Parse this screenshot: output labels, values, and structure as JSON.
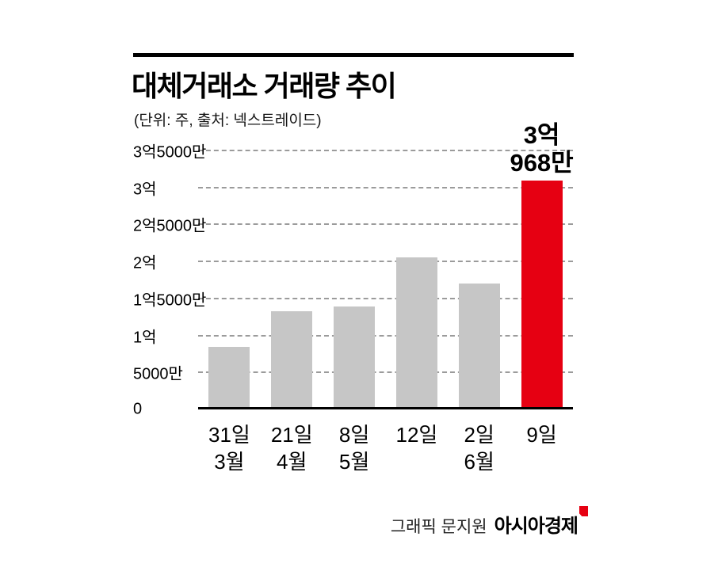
{
  "header": {
    "title": "대체거래소 거래량 추이",
    "subtitle": "(단위: 주, 출처: 넥스트레이드)"
  },
  "chart_data": {
    "type": "bar",
    "title": "대체거래소 거래량 추이",
    "unit_source_note": "(단위: 주, 출처: 넥스트레이드)",
    "xlabel": "",
    "ylabel": "",
    "categories": [
      {
        "day": "31일",
        "month": "3월"
      },
      {
        "day": "21일",
        "month": "4월"
      },
      {
        "day": "8일",
        "month": "5월"
      },
      {
        "day": "12일",
        "month": ""
      },
      {
        "day": "2일",
        "month": "6월"
      },
      {
        "day": "9일",
        "month": ""
      }
    ],
    "values": [
      85000000,
      133000000,
      139000000,
      206000000,
      170000000,
      309680000
    ],
    "highlight_index": 5,
    "annotation": {
      "index": 5,
      "lines": [
        "3억",
        "968만"
      ],
      "value": 309680000
    },
    "y_ticks": [
      {
        "value": 350000000,
        "label": "3억5000만"
      },
      {
        "value": 300000000,
        "label": "3억"
      },
      {
        "value": 250000000,
        "label": "2억5000만"
      },
      {
        "value": 200000000,
        "label": "2억"
      },
      {
        "value": 150000000,
        "label": "1억5000만"
      },
      {
        "value": 100000000,
        "label": "1억"
      },
      {
        "value": 50000000,
        "label": "5000만"
      },
      {
        "value": 0,
        "label": "0"
      }
    ],
    "ylim": [
      0,
      350000000
    ],
    "grid": "dashed-horizontal",
    "legend": "none",
    "bar_color": "#c6c6c6",
    "highlight_color": "#e60012",
    "axis_color": "#000000"
  },
  "footer": {
    "credit": "그래픽 문지원",
    "brand": "아시아경제"
  }
}
